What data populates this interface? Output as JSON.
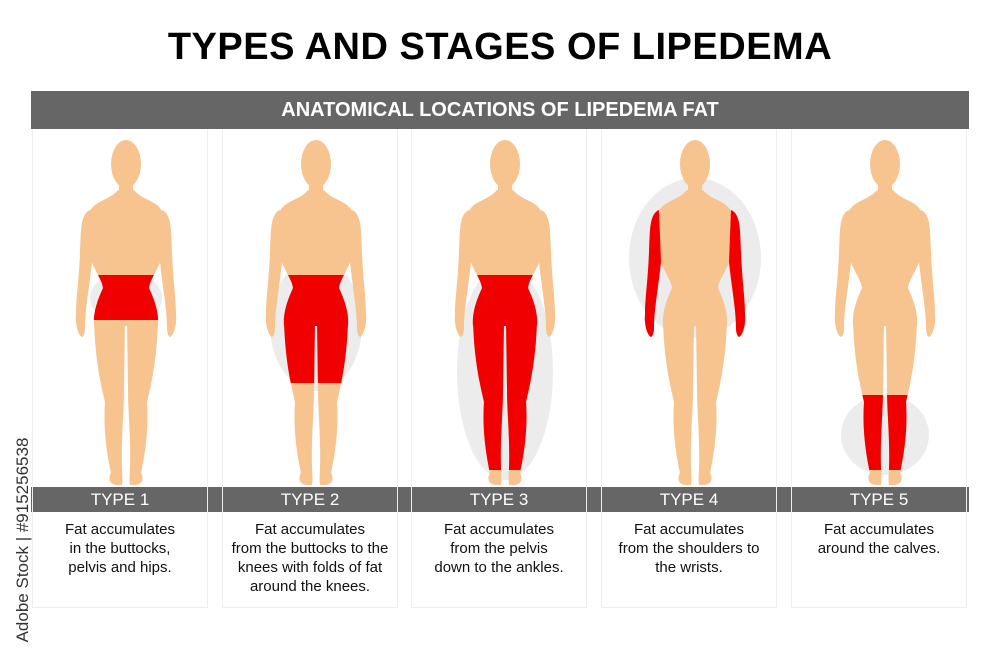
{
  "title": "TYPES AND STAGES OF LIPEDEMA",
  "banner": "ANATOMICAL LOCATIONS OF LIPEDEMA FAT",
  "colors": {
    "skin": "#f7c48f",
    "fat": "#f00000",
    "bar": "#666666",
    "halo": "#ececec"
  },
  "types": [
    {
      "label": "TYPE 1",
      "description": "Fat accumulates in the buttocks, pelvis and hips.",
      "lines": [
        "Fat accumulates",
        "in the buttocks,",
        "pelvis and hips."
      ],
      "region": "hips"
    },
    {
      "label": "TYPE 2",
      "description": "Fat accumulates from the buttocks to the knees with folds of fat around the knees.",
      "lines": [
        "Fat accumulates",
        "from the buttocks to the",
        "knees with folds of fat",
        "around the knees."
      ],
      "region": "buttocks-to-knees"
    },
    {
      "label": "TYPE 3",
      "description": "Fat accumulates from the pelvis down to the ankles.",
      "lines": [
        "Fat accumulates",
        "from the pelvis",
        "down to the ankles."
      ],
      "region": "pelvis-to-ankles"
    },
    {
      "label": "TYPE 4",
      "description": "Fat accumulates from the shoulders to the wrists.",
      "lines": [
        "Fat accumulates",
        "from the shoulders to",
        "the wrists."
      ],
      "region": "arms"
    },
    {
      "label": "TYPE 5",
      "description": "Fat accumulates around the calves.",
      "lines": [
        "Fat accumulates",
        "around the calves."
      ],
      "region": "calves"
    }
  ],
  "watermark": "Adobe Stock | #915256538"
}
